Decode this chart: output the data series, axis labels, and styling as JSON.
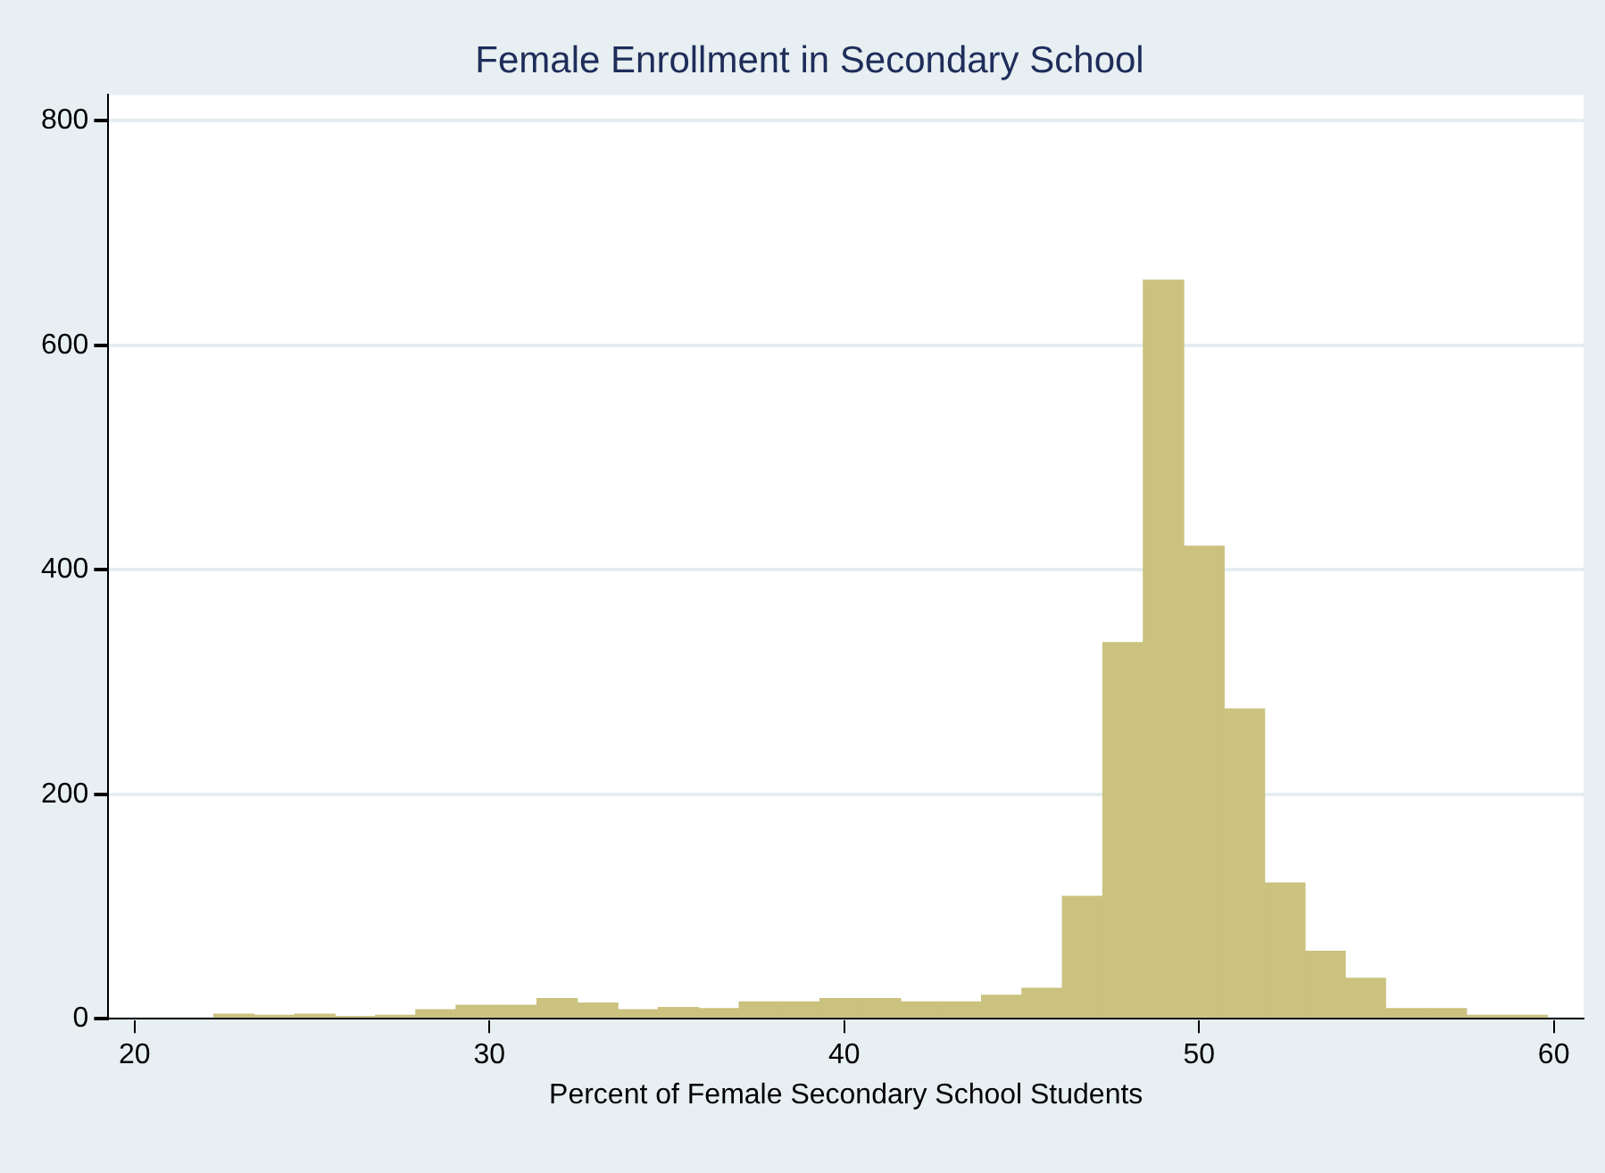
{
  "chart_data": {
    "type": "histogram",
    "title": "Female Enrollment in Secondary School",
    "xlabel": "Percent of Female Secondary School Students",
    "bins": [
      22.23,
      23.37,
      24.51,
      25.65,
      26.79,
      27.93,
      29.06,
      30.2,
      31.34,
      32.48,
      33.62,
      34.76,
      35.9,
      37.04,
      38.18,
      39.32,
      40.45,
      41.59,
      42.73,
      43.87,
      45.01,
      46.15,
      47.29,
      48.43,
      49.57,
      50.71,
      51.85,
      52.99,
      54.12,
      55.26,
      56.4,
      57.54,
      58.68,
      59.82
    ],
    "values": [
      4,
      3,
      4,
      2,
      3,
      8,
      12,
      12,
      18,
      14,
      8,
      10,
      9,
      15,
      15,
      18,
      18,
      15,
      15,
      21,
      27,
      109,
      335,
      658,
      421,
      276,
      121,
      60,
      36,
      9,
      9,
      3,
      3
    ],
    "color": "#cac27e",
    "xlim": [
      19.26,
      60.84
    ],
    "xticks": [
      20,
      30,
      40,
      50,
      60
    ],
    "ylim": [
      0,
      823
    ],
    "yticks": [
      0,
      200,
      400,
      600,
      800
    ],
    "grid": "y",
    "legend": false
  }
}
